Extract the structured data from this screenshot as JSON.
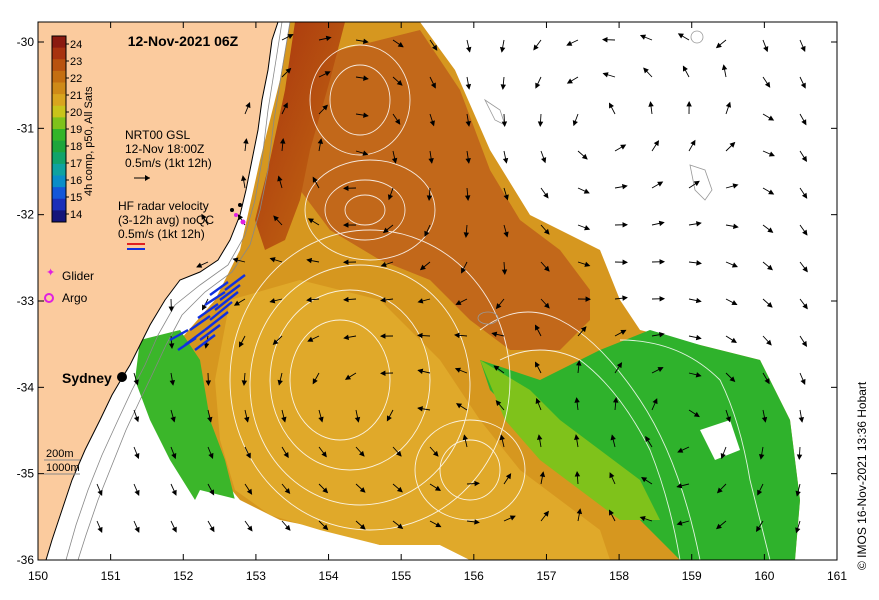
{
  "title": "12-Nov-2021 06Z",
  "credit": "© IMOS 16-Nov-2021 13:36 Hobart",
  "colorbar": {
    "label": "4h comp, p50, All Sats",
    "ticks": [
      "24",
      "23",
      "22",
      "21",
      "20",
      "19",
      "18",
      "17",
      "16",
      "15",
      "14"
    ],
    "colors": [
      "#8b1a10",
      "#a8320f",
      "#b8520f",
      "#c46e10",
      "#cf8a17",
      "#d9a51e",
      "#c9c41a",
      "#7fc21b",
      "#33b528",
      "#1da53b",
      "#11a36a",
      "#0fa2a0",
      "#0a8dc8",
      "#1457d8",
      "#1a2eb8",
      "#14157a"
    ]
  },
  "legend": {
    "gsl_line1": "NRT00 GSL",
    "gsl_line2": "12-Nov 18:00Z",
    "gsl_line3": "0.5m/s (1kt 12h)",
    "hf_line1": "HF radar velocity",
    "hf_line2": "(3-12h avg) noQC",
    "hf_line3": "0.5m/s (1kt 12h)",
    "glider": "Glider",
    "argo": "Argo",
    "depth_200": "200m",
    "depth_1000": "1000m"
  },
  "place": {
    "sydney": "Sydney"
  },
  "axes": {
    "x_ticks": [
      "150",
      "151",
      "152",
      "153",
      "154",
      "155",
      "156",
      "157",
      "158",
      "159",
      "160",
      "161"
    ],
    "y_ticks": [
      "-30",
      "-31",
      "-32",
      "-33",
      "-34",
      "-35",
      "-36"
    ]
  },
  "colors": {
    "land": "#fbcb9e",
    "sst_warm": "#b8560f",
    "sst_mid": "#d39a22",
    "sst_cool": "#3bb62a",
    "hf_arrow": "#1030e0",
    "glider": "#e020e0",
    "argo": "#e020e0"
  }
}
